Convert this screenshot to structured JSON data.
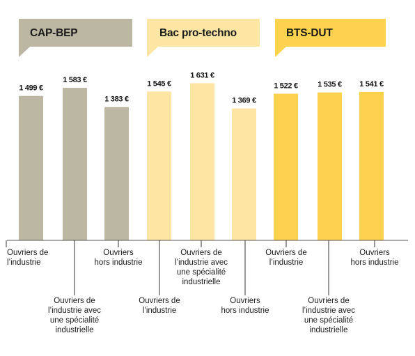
{
  "chart_data": {
    "type": "bar",
    "groups": [
      {
        "name": "CAP-BEP",
        "color": "#bcb7a3",
        "banner_color": "#bcb7a3",
        "text_color": "#1a1a1a",
        "categories": [
          [
            "Ouvriers de",
            "l’industrie"
          ],
          [
            "Ouvriers de",
            "l’industrie avec",
            "une spécialité",
            "industrielle"
          ],
          [
            "Ouvriers",
            "hors industrie"
          ]
        ],
        "values": [
          1499,
          1583,
          1383
        ],
        "value_labels": [
          "1 499 €",
          "1 583 €",
          "1 383 €"
        ]
      },
      {
        "name": "Bac pro-techno",
        "color": "#fde6a4",
        "banner_color": "#fde6a4",
        "text_color": "#1a1a1a",
        "categories": [
          [
            "Ouvriers de",
            "l’industrie"
          ],
          [
            "Ouvriers de",
            "l’industrie avec",
            "une spécialité",
            "industrielle"
          ],
          [
            "Ouvriers",
            "hors industrie"
          ]
        ],
        "values": [
          1545,
          1631,
          1369
        ],
        "value_labels": [
          "1 545 €",
          "1 631 €",
          "1 369 €"
        ]
      },
      {
        "name": "BTS-DUT",
        "color": "#fdd24f",
        "banner_color": "#fdd24f",
        "text_color": "#1a1a1a",
        "categories": [
          [
            "Ouvriers de",
            "l’industrie"
          ],
          [
            "Ouvriers de",
            "l’industrie avec",
            "une spécialité",
            "industrielle"
          ],
          [
            "Ouvriers",
            "hors industrie"
          ]
        ],
        "values": [
          1522,
          1535,
          1541
        ],
        "value_labels": [
          "1 522 €",
          "1 535 €",
          "1 541 €"
        ]
      }
    ],
    "axis_color": "#555555",
    "grid": false,
    "legend": "none"
  }
}
